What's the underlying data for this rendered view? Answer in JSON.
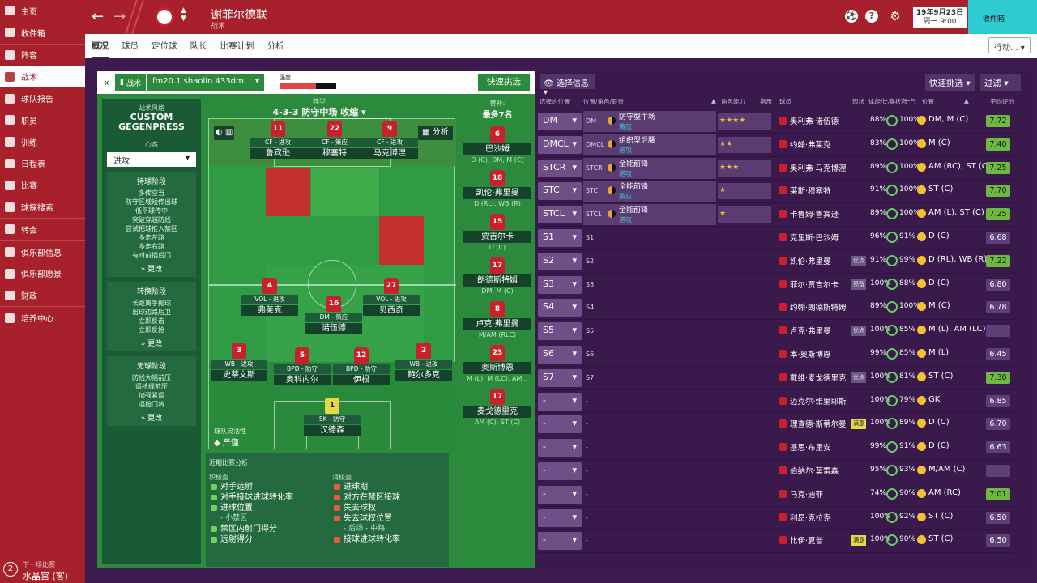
{
  "sidebar": {
    "items": [
      {
        "label": "主页",
        "icon": "home-icon"
      },
      {
        "label": "收件箱",
        "icon": "inbox-icon"
      },
      {
        "label": "阵容",
        "icon": "squad-icon"
      },
      {
        "label": "战术",
        "icon": "tactics-icon"
      },
      {
        "label": "球队报告",
        "icon": "report-icon"
      },
      {
        "label": "职员",
        "icon": "staff-icon"
      },
      {
        "label": "训练",
        "icon": "training-icon"
      },
      {
        "label": "日程表",
        "icon": "calendar-icon"
      },
      {
        "label": "比赛",
        "icon": "trophy-icon"
      },
      {
        "label": "球探搜索",
        "icon": "scouting-icon"
      },
      {
        "label": "转会",
        "icon": "transfer-icon"
      },
      {
        "label": "俱乐部信息",
        "icon": "club-info-icon"
      },
      {
        "label": "俱乐部愿景",
        "icon": "vision-icon"
      },
      {
        "label": "财政",
        "icon": "finance-icon"
      },
      {
        "label": "培养中心",
        "icon": "development-icon"
      }
    ],
    "next_match_label": "下一场比赛",
    "next_match_value": "水晶宫 (客)",
    "next_match_days": "2"
  },
  "header": {
    "club_name": "谢菲尔德联",
    "sub": "战术",
    "date": "19年9月23日",
    "time": "周一 9:00",
    "inbox": "收件箱"
  },
  "tabs": [
    "概况",
    "球员",
    "定位球",
    "队长",
    "比赛计划",
    "分析"
  ],
  "action_label": "行动...",
  "tactic": {
    "label": "战术",
    "name": "fm20.1 shaolin 433dm",
    "intensity_label": "强度",
    "intensity": 0.64,
    "quick_pick": "快速挑选",
    "style_title": "战术风格",
    "style_line1": "CUSTOM",
    "style_line2": "GEGENPRESS",
    "mentality_title": "心态",
    "mentality": "进攻",
    "in_possession": {
      "title": "持球阶段",
      "lines": [
        "多传空当",
        "防守区域短传出球",
        "低平球传中",
        "突破穿越防线",
        "尝试把球推入禁区",
        "多走左路",
        "多走右路",
        "有时前插后门"
      ],
      "more": "更改"
    },
    "transition": {
      "title": "转换阶段",
      "lines": [
        "长距离手抛球",
        "出球边路后卫",
        "立即反击",
        "立即反抢"
      ],
      "more": "更改"
    },
    "out_possession": {
      "title": "无球阶段",
      "lines": [
        "防线大幅前压",
        "逼抢线前压",
        "加强紧逼",
        "逼抢门将"
      ],
      "more": "更改"
    },
    "formation_label": "阵型",
    "formation": "4-3-3 防守中场 收缩",
    "analyze": "分析",
    "team_flex_label": "球队灵活性",
    "team_flex": "严谨",
    "players": [
      {
        "num": "11",
        "role": "CF - 进攻",
        "name": "鲁宾逊"
      },
      {
        "num": "22",
        "role": "CF - 策应",
        "name": "穆塞特"
      },
      {
        "num": "9",
        "role": "CF - 进攻",
        "name": "马克博涅"
      },
      {
        "num": "4",
        "role": "VOL - 进攻",
        "name": "弗莱克"
      },
      {
        "num": "16",
        "role": "DM - 策应",
        "name": "诺伍德"
      },
      {
        "num": "27",
        "role": "VOL - 进攻",
        "name": "贝西奇"
      },
      {
        "num": "3",
        "role": "WB - 进攻",
        "name": "史蒂文斯"
      },
      {
        "num": "5",
        "role": "BPD - 防守",
        "name": "奥科内尔"
      },
      {
        "num": "12",
        "role": "BPD - 防守",
        "name": "伊根"
      },
      {
        "num": "2",
        "role": "WB - 进攻",
        "name": "鲍尔多克"
      },
      {
        "num": "1",
        "role": "SK - 防守",
        "name": "汉德森"
      }
    ],
    "subs_title": "替补:",
    "subs_count": "最多7名",
    "subs": [
      {
        "num": "6",
        "name": "巴沙姆",
        "pos": "D (C), DM, M (C)"
      },
      {
        "num": "18",
        "name": "凯伦·弗里曼",
        "pos": "D (RL), WB (R)"
      },
      {
        "num": "15",
        "name": "贾吉尔卡",
        "pos": "D (C)"
      },
      {
        "num": "17",
        "name": "朗德斯特姆",
        "pos": "DM, M (C)"
      },
      {
        "num": "8",
        "name": "卢克·弗里曼",
        "pos": "M/AM (RLC)"
      },
      {
        "num": "23",
        "name": "奥斯博恩",
        "pos": "M (L), M (LC), AM..."
      },
      {
        "num": "17",
        "name": "麦戈德里克",
        "pos": "AM (C), ST (C)"
      }
    ],
    "analysis_title": "近期比赛分析",
    "positives_title": "积极面",
    "negatives_title": "消极面",
    "positives": [
      "对手远射",
      "对手接球进球转化率",
      "进球位置",
      "- 小禁区",
      "禁区内射门得分",
      "远射得分"
    ],
    "negatives": [
      "进球期",
      "对方在禁区接球",
      "失去球权",
      "失去球权位置",
      "- 后场 - 中路",
      "接球进球转化率"
    ]
  },
  "right": {
    "select_info": "选择信息",
    "quick_pick": "快速挑选",
    "filter": "过滤",
    "cols": [
      "选择的位置",
      "位置/角色/职责",
      "角色能力",
      "指示",
      "球员",
      "现状",
      "体能/比赛状态",
      "士气",
      "位置",
      "平均评分"
    ],
    "rows": [
      {
        "slot": "DM",
        "abbr": "DM",
        "role": "防守型中场",
        "duty": "策应",
        "stars": "★★★★",
        "player": "奥利弗·诺伍德",
        "badge": "",
        "cond": "88%",
        "morale": "100%",
        "pos": "DM, M (C)",
        "rating": "7.72",
        "hi": true
      },
      {
        "slot": "DMCL",
        "abbr": "DMCL",
        "role": "组织型后腰",
        "duty": "进攻",
        "stars": "★★",
        "player": "约翰·弗莱克",
        "badge": "",
        "cond": "83%",
        "morale": "100%",
        "pos": "M (C)",
        "rating": "7.40",
        "hi": true
      },
      {
        "slot": "STCR",
        "abbr": "STCR",
        "role": "全能前锋",
        "duty": "进攻",
        "stars": "★★★",
        "player": "奥利弗·马克博涅",
        "badge": "",
        "cond": "89%",
        "morale": "100%",
        "pos": "AM (RC), ST (C)",
        "rating": "7.25",
        "hi": true
      },
      {
        "slot": "STC",
        "abbr": "STC",
        "role": "全能前锋",
        "duty": "策应",
        "stars": "★",
        "player": "莱斯·穆塞特",
        "badge": "",
        "cond": "91%",
        "morale": "100%",
        "pos": "ST (C)",
        "rating": "7.70",
        "hi": true
      },
      {
        "slot": "STCL",
        "abbr": "STCL",
        "role": "全能前锋",
        "duty": "进攻",
        "stars": "★",
        "player": "卡鲁姆·鲁宾逊",
        "badge": "",
        "cond": "89%",
        "morale": "100%",
        "pos": "AM (L), ST (C)",
        "rating": "7.25",
        "hi": true
      },
      {
        "slot": "S1",
        "abbr": "S1",
        "player": "克里斯·巴沙姆",
        "badge": "",
        "cond": "96%",
        "morale": "91%",
        "pos": "D (C)",
        "rating": "6.68",
        "hi": false
      },
      {
        "slot": "S2",
        "abbr": "S2",
        "player": "凯伦·弗里曼",
        "badge": "优点",
        "cond": "91%",
        "morale": "99%",
        "pos": "D (RL), WB (R)",
        "rating": "7.22",
        "hi": true
      },
      {
        "slot": "S3",
        "abbr": "S3",
        "player": "菲尔·贾吉尔卡",
        "badge": "预备",
        "cond": "100%",
        "morale": "88%",
        "pos": "D (C)",
        "rating": "6.80",
        "hi": false
      },
      {
        "slot": "S4",
        "abbr": "S4",
        "player": "约翰·朗德斯特姆",
        "badge": "",
        "cond": "89%",
        "morale": "100%",
        "pos": "M (C)",
        "rating": "6.78",
        "hi": false
      },
      {
        "slot": "S5",
        "abbr": "S5",
        "player": "卢克·弗里曼",
        "badge": "优点",
        "cond": "100%",
        "morale": "85%",
        "pos": "M (L), AM (LC)",
        "rating": "",
        "hi": false
      },
      {
        "slot": "S6",
        "abbr": "S6",
        "player": "本·奥斯博恩",
        "badge": "",
        "cond": "99%",
        "morale": "85%",
        "pos": "M (L)",
        "rating": "6.45",
        "hi": false
      },
      {
        "slot": "S7",
        "abbr": "S7",
        "player": "戴维·麦戈德里克",
        "badge": "优点",
        "cond": "100%",
        "morale": "81%",
        "pos": "ST (C)",
        "rating": "7.30",
        "hi": true
      },
      {
        "slot": "-",
        "abbr": "-",
        "player": "迈克尔·维里耶斯",
        "badge": "",
        "cond": "100%",
        "morale": "79%",
        "pos": "GK",
        "rating": "6.85",
        "hi": false
      },
      {
        "slot": "-",
        "abbr": "-",
        "player": "理查德·斯蒂尔曼",
        "badge": "满意",
        "cond": "100%",
        "morale": "89%",
        "pos": "D (C)",
        "rating": "6.70",
        "hi": false
      },
      {
        "slot": "-",
        "abbr": "-",
        "player": "基思·布里安",
        "badge": "",
        "cond": "99%",
        "morale": "91%",
        "pos": "D (C)",
        "rating": "6.63",
        "hi": false
      },
      {
        "slot": "-",
        "abbr": "-",
        "player": "伯纳尔·莫雷森",
        "badge": "",
        "cond": "95%",
        "morale": "93%",
        "pos": "M/AM (C)",
        "rating": "",
        "hi": false
      },
      {
        "slot": "-",
        "abbr": "-",
        "player": "马克·迪菲",
        "badge": "",
        "cond": "74%",
        "morale": "90%",
        "pos": "AM (RC)",
        "rating": "7.01",
        "hi": true
      },
      {
        "slot": "-",
        "abbr": "-",
        "player": "利昂·克拉克",
        "badge": "",
        "cond": "100%",
        "morale": "92%",
        "pos": "ST (C)",
        "rating": "6.50",
        "hi": false
      },
      {
        "slot": "-",
        "abbr": "-",
        "player": "比伊·夏普",
        "badge": "满意",
        "cond": "100%",
        "morale": "90%",
        "pos": "ST (C)",
        "rating": "6.50",
        "hi": false
      }
    ]
  },
  "colors": {
    "brand": "#a8202b",
    "pitch": "#2c8a3c",
    "panel": "#3a1a4c",
    "accent": "#2ecbd3"
  }
}
